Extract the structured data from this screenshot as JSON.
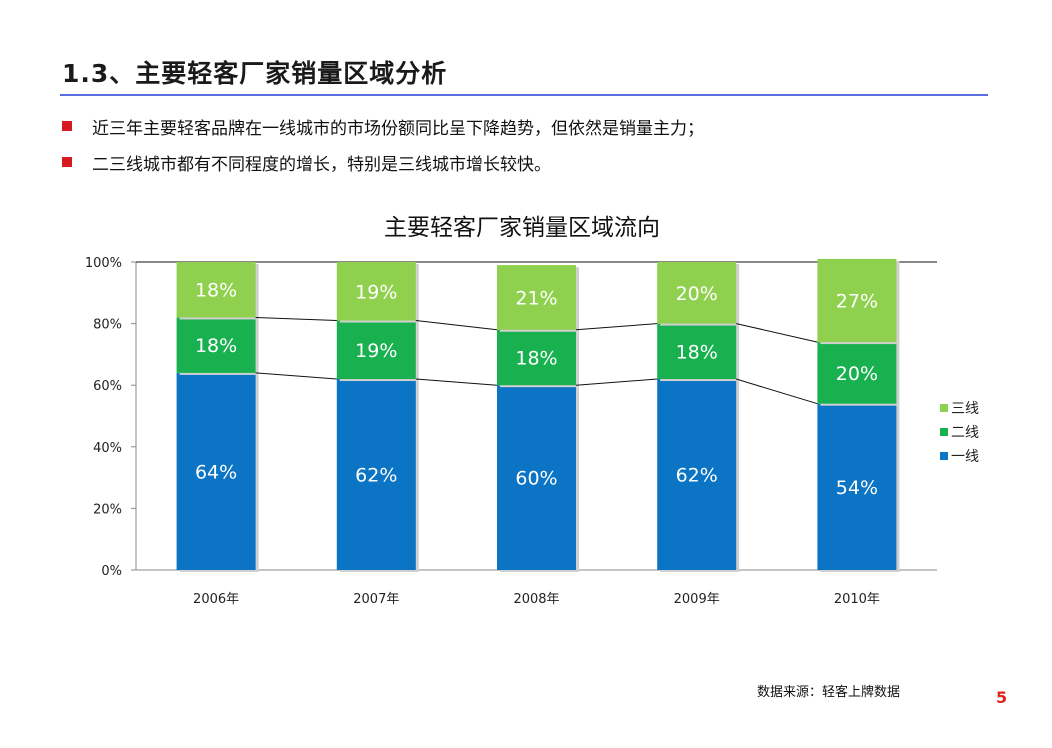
{
  "header": {
    "title": "1.3、主要轻客厂家销量区域分析"
  },
  "bullets": [
    "近三年主要轻客品牌在一线城市的市场份额同比呈下降趋势，但依然是销量主力；",
    "二三线城市都有不同程度的增长，特别是三线城市增长较快。"
  ],
  "chart_data": {
    "type": "bar",
    "stacked": true,
    "title": "主要轻客厂家销量区域流向",
    "categories": [
      "2006年",
      "2007年",
      "2008年",
      "2009年",
      "2010年"
    ],
    "series": [
      {
        "name": "一线",
        "values": [
          64,
          62,
          60,
          62,
          54
        ],
        "labels": [
          "64%",
          "62%",
          "60%",
          "62%",
          "54%"
        ],
        "color": "#0b74c4"
      },
      {
        "name": "二线",
        "values": [
          18,
          19,
          18,
          18,
          20
        ],
        "labels": [
          "18%",
          "19%",
          "18%",
          "18%",
          "20%"
        ],
        "color": "#19b150"
      },
      {
        "name": "三线",
        "values": [
          18,
          19,
          21,
          20,
          27
        ],
        "labels": [
          "18%",
          "19%",
          "21%",
          "20%",
          "27%"
        ],
        "color": "#8fd14f"
      }
    ],
    "ylim": [
      0,
      100
    ],
    "yticks": [
      "0%",
      "20%",
      "40%",
      "60%",
      "80%",
      "100%"
    ],
    "legend": [
      "三线",
      "二线",
      "一线"
    ],
    "legend_position": "right"
  },
  "footer": {
    "source": "数据来源：轻客上牌数据",
    "page": "5"
  },
  "colors": {
    "accent_rule": "#5b6ee1",
    "bullet": "#d71920",
    "page_number": "#e1251b"
  }
}
